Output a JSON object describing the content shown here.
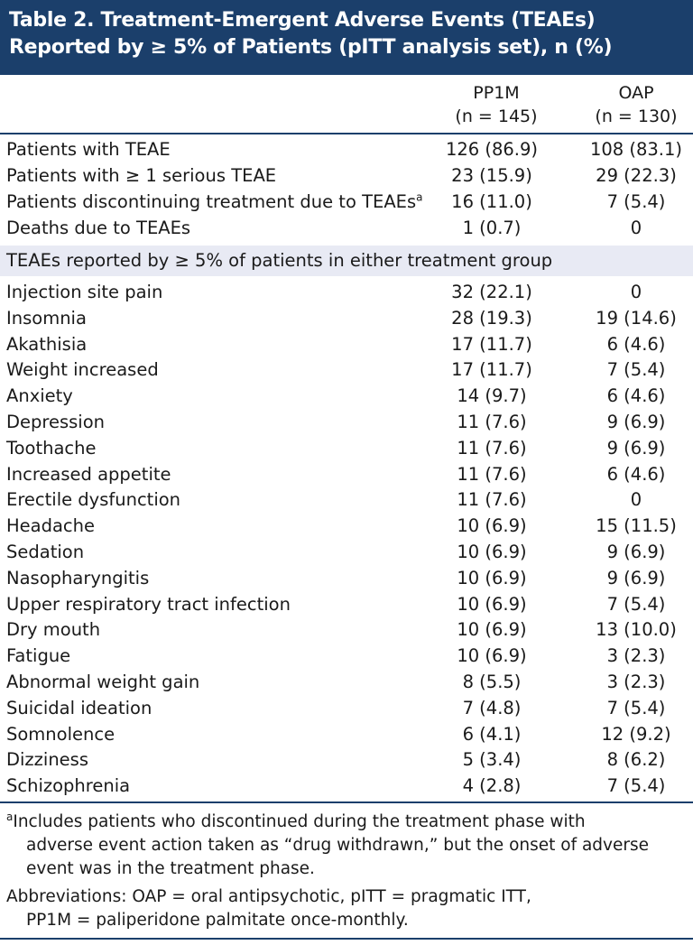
{
  "title": {
    "line1": "Table 2. Treatment-Emergent Adverse Events (TEAEs)",
    "line2": "Reported by ≥ 5% of Patients (pITT analysis set), n (%)"
  },
  "columns": [
    {
      "name": "PP1M",
      "n": "(n = 145)"
    },
    {
      "name": "OAP",
      "n": "(n = 130)"
    }
  ],
  "summary_rows": [
    {
      "label": "Patients with TEAE",
      "pp1m": "126 (86.9)",
      "oap": "108 (83.1)"
    },
    {
      "label": "Patients with ≥ 1 serious TEAE",
      "pp1m": "23 (15.9)",
      "oap": "29 (22.3)"
    },
    {
      "label": "Patients discontinuing treatment due to TEAEs",
      "sup": "a",
      "pp1m": "16 (11.0)",
      "oap": "7 (5.4)"
    },
    {
      "label": "Deaths due to TEAEs",
      "pp1m": "1 (0.7)",
      "oap": "0"
    }
  ],
  "section_label": "TEAEs reported by ≥ 5% of patients in either treatment group",
  "event_rows": [
    {
      "label": "Injection site pain",
      "pp1m": "32 (22.1)",
      "oap": "0"
    },
    {
      "label": "Insomnia",
      "pp1m": "28 (19.3)",
      "oap": "19 (14.6)"
    },
    {
      "label": "Akathisia",
      "pp1m": "17 (11.7)",
      "oap": "6 (4.6)"
    },
    {
      "label": "Weight increased",
      "pp1m": "17 (11.7)",
      "oap": "7 (5.4)"
    },
    {
      "label": "Anxiety",
      "pp1m": "14 (9.7)",
      "oap": "6 (4.6)"
    },
    {
      "label": "Depression",
      "pp1m": "11 (7.6)",
      "oap": "9 (6.9)"
    },
    {
      "label": "Toothache",
      "pp1m": "11 (7.6)",
      "oap": "9 (6.9)"
    },
    {
      "label": "Increased appetite",
      "pp1m": "11 (7.6)",
      "oap": "6 (4.6)"
    },
    {
      "label": "Erectile dysfunction",
      "pp1m": "11 (7.6)",
      "oap": "0"
    },
    {
      "label": "Headache",
      "pp1m": "10 (6.9)",
      "oap": "15 (11.5)"
    },
    {
      "label": "Sedation",
      "pp1m": "10 (6.9)",
      "oap": "9 (6.9)"
    },
    {
      "label": "Nasopharyngitis",
      "pp1m": "10 (6.9)",
      "oap": "9 (6.9)"
    },
    {
      "label": "Upper respiratory tract infection",
      "pp1m": "10 (6.9)",
      "oap": "7 (5.4)"
    },
    {
      "label": "Dry mouth",
      "pp1m": "10 (6.9)",
      "oap": "13 (10.0)"
    },
    {
      "label": "Fatigue",
      "pp1m": "10 (6.9)",
      "oap": "3 (2.3)"
    },
    {
      "label": "Abnormal weight gain",
      "pp1m": "8 (5.5)",
      "oap": "3 (2.3)"
    },
    {
      "label": "Suicidal ideation",
      "pp1m": "7 (4.8)",
      "oap": "7 (5.4)"
    },
    {
      "label": "Somnolence",
      "pp1m": "6 (4.1)",
      "oap": "12 (9.2)"
    },
    {
      "label": "Dizziness",
      "pp1m": "5 (3.4)",
      "oap": "8 (6.2)"
    },
    {
      "label": "Schizophrenia",
      "pp1m": "4 (2.8)",
      "oap": "7 (5.4)"
    }
  ],
  "footnote": {
    "sup": "a",
    "line1": "Includes patients who discontinued during the treatment phase with",
    "line2": "adverse event action taken as “drug withdrawn,” but the onset of adverse",
    "line3": "event was in the treatment phase."
  },
  "abbreviations": {
    "line1": "Abbreviations: OAP = oral antipsychotic, pITT = pragmatic ITT,",
    "line2": "PP1M = paliperidone palmitate once-monthly."
  }
}
